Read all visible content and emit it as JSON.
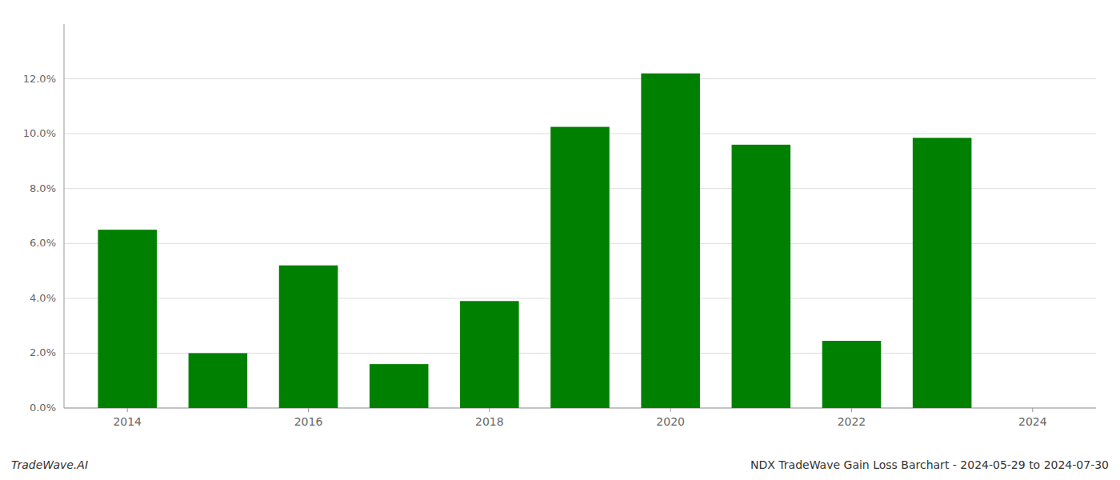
{
  "chart_data": {
    "type": "bar",
    "x": [
      2014,
      2015,
      2016,
      2017,
      2018,
      2019,
      2020,
      2021,
      2022,
      2023
    ],
    "values": [
      0.065,
      0.02,
      0.052,
      0.016,
      0.039,
      0.1025,
      0.122,
      0.096,
      0.0245,
      0.0985
    ],
    "color": "#008000",
    "xlim": [
      2013.3,
      2024.7
    ],
    "xticks": [
      2014,
      2016,
      2018,
      2020,
      2022,
      2024
    ],
    "ylim": [
      0,
      0.14
    ],
    "yticks": [
      {
        "value": 0.0,
        "label": "0.0%"
      },
      {
        "value": 0.02,
        "label": "2.0%"
      },
      {
        "value": 0.04,
        "label": "4.0%"
      },
      {
        "value": 0.06,
        "label": "6.0%"
      },
      {
        "value": 0.08,
        "label": "8.0%"
      },
      {
        "value": 0.1,
        "label": "10.0%"
      },
      {
        "value": 0.12,
        "label": "12.0%"
      }
    ],
    "grid": true,
    "annotations": [
      "TradeWave.AI",
      "NDX TradeWave Gain Loss Barchart - 2024-05-29 to 2024-07-30"
    ]
  }
}
